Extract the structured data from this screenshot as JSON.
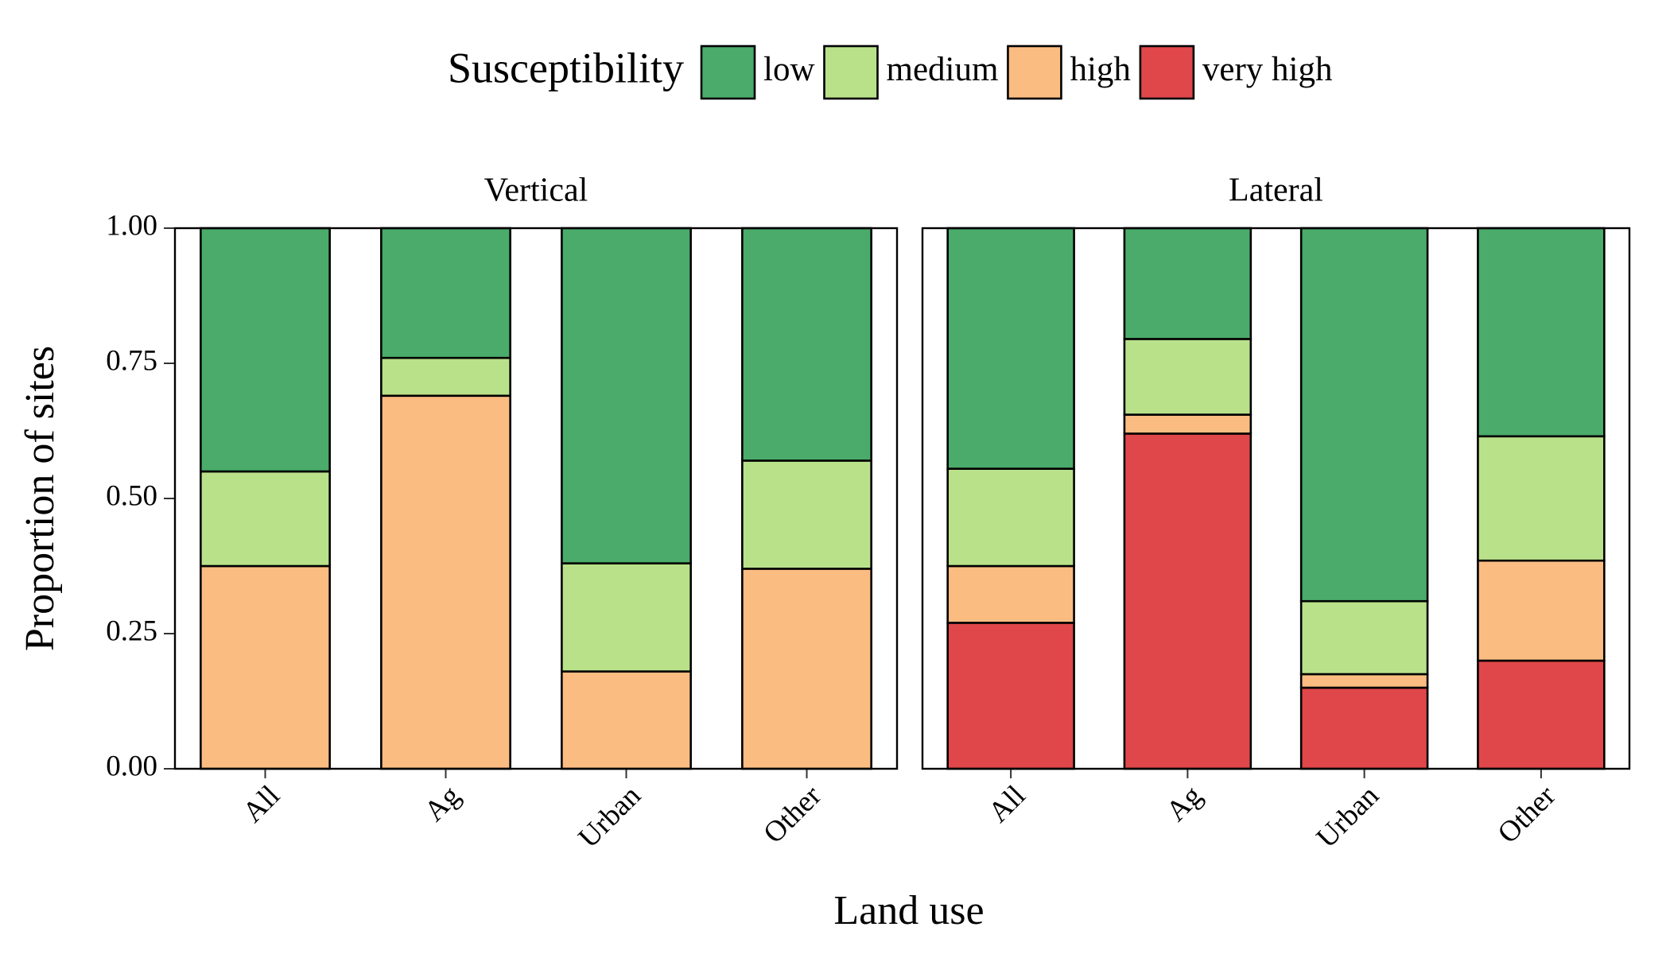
{
  "chart_data": {
    "type": "bar",
    "stacked": true,
    "legend_title": "Susceptibility",
    "legend": "top",
    "xlabel": "Land use",
    "ylabel": "Proportion of sites",
    "panels": [
      "Vertical",
      "Lateral"
    ],
    "categories": [
      "All",
      "Ag",
      "Urban",
      "Other"
    ],
    "ylim": [
      0,
      1
    ],
    "yticks": [
      {
        "value": 0,
        "label": "0.00"
      },
      {
        "value": 0.25,
        "label": "0.25"
      },
      {
        "value": 0.5,
        "label": "0.50"
      },
      {
        "value": 0.75,
        "label": "0.75"
      },
      {
        "value": 1,
        "label": "1.00"
      }
    ],
    "series": [
      {
        "name": "low",
        "color": "#4aab6a",
        "values": [
          [
            0.45,
            0.24,
            0.62,
            0.43
          ],
          [
            0.445,
            0.205,
            0.69,
            0.385
          ]
        ]
      },
      {
        "name": "medium",
        "color": "#b9e18a",
        "values": [
          [
            0.175,
            0.07,
            0.2,
            0.2
          ],
          [
            0.18,
            0.14,
            0.135,
            0.23
          ]
        ]
      },
      {
        "name": "high",
        "color": "#fbbc82",
        "values": [
          [
            0.375,
            0.69,
            0.18,
            0.37
          ],
          [
            0.105,
            0.035,
            0.025,
            0.185
          ]
        ]
      },
      {
        "name": "very high",
        "color": "#e0474a",
        "values": [
          [
            null,
            null,
            null,
            null
          ],
          [
            0.27,
            0.62,
            0.15,
            0.2
          ]
        ]
      }
    ]
  }
}
